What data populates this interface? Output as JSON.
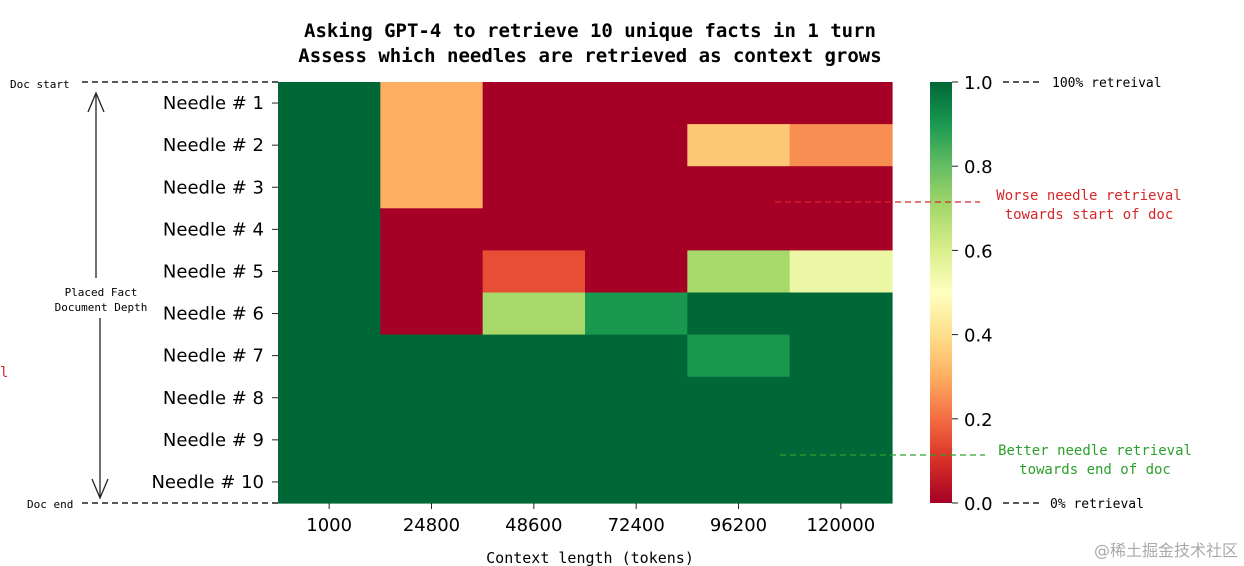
{
  "chart_data": {
    "type": "heatmap",
    "title_lines": [
      "Asking GPT-4 to retrieve 10 unique facts in 1 turn",
      "Assess which needles are retrieved as context grows"
    ],
    "xlabel": "Context length (tokens)",
    "ylabel": "",
    "x_categories": [
      "1000",
      "24800",
      "48600",
      "72400",
      "96200",
      "120000"
    ],
    "y_categories": [
      "Needle # 1",
      "Needle # 2",
      "Needle # 3",
      "Needle # 4",
      "Needle # 5",
      "Needle # 6",
      "Needle # 7",
      "Needle # 8",
      "Needle # 9",
      "Needle # 10"
    ],
    "values": [
      [
        1.0,
        0.3,
        0.0,
        0.0,
        0.0,
        0.0
      ],
      [
        1.0,
        0.3,
        0.0,
        0.0,
        0.35,
        0.25
      ],
      [
        1.0,
        0.3,
        0.0,
        0.0,
        0.0,
        0.0
      ],
      [
        1.0,
        0.0,
        0.0,
        0.0,
        0.0,
        0.0
      ],
      [
        1.0,
        0.0,
        0.15,
        0.0,
        0.7,
        0.55
      ],
      [
        1.0,
        0.0,
        0.7,
        0.9,
        1.0,
        1.0
      ],
      [
        1.0,
        1.0,
        1.0,
        1.0,
        0.9,
        1.0
      ],
      [
        1.0,
        1.0,
        1.0,
        1.0,
        1.0,
        1.0
      ],
      [
        1.0,
        1.0,
        1.0,
        1.0,
        1.0,
        1.0
      ],
      [
        1.0,
        1.0,
        1.0,
        1.0,
        1.0,
        1.0
      ]
    ],
    "zlim": [
      0.0,
      1.0
    ],
    "colormap": "RdYlGn",
    "colorbar_ticks": [
      "1.0",
      "0.8",
      "0.6",
      "0.4",
      "0.2",
      "0.0"
    ],
    "colorbar_tick_values": [
      1.0,
      0.8,
      0.6,
      0.4,
      0.2,
      0.0
    ],
    "colorbar_top_note": "100% retreival",
    "colorbar_bottom_note": "0% retrieval"
  },
  "annotations": {
    "doc_start": "Doc start",
    "doc_end": "Doc end",
    "depth_line1": "Placed Fact",
    "depth_line2": "Document Depth",
    "worse_line1": "Worse needle retrieval",
    "worse_line2": "towards start of doc",
    "better_line1": "Better needle retrieval",
    "better_line2": "towards end of doc",
    "left_fragment": "l",
    "watermark": "@稀土掘金技术社区"
  },
  "colors": {
    "worse_text": "#d62728",
    "better_text": "#2ca02c",
    "left_fragment": "#d62728",
    "watermark": "#aaaaaa"
  }
}
